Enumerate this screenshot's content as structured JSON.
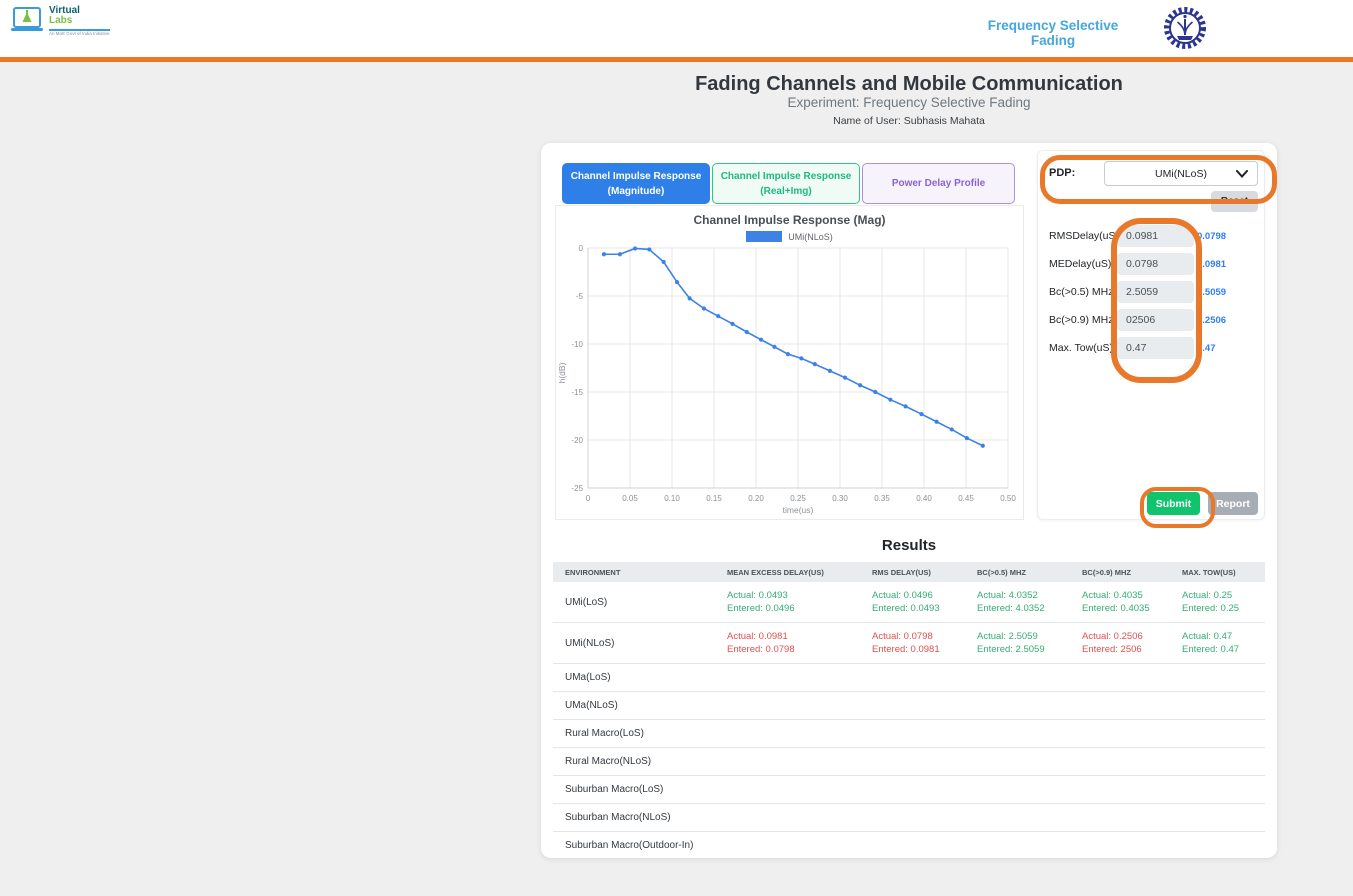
{
  "header": {
    "logo": {
      "line1": "Virtual",
      "line2": "Labs",
      "tagline": "An MoE Govt of India Initiative"
    },
    "experiment_title": "Frequency Selective Fading"
  },
  "page": {
    "title": "Fading Channels and Mobile Communication",
    "subtitle": "Experiment: Frequency Selective Fading",
    "user": "Name of User: Subhasis Mahata"
  },
  "tabs": [
    {
      "line1": "Channel Impulse Response",
      "line2": "(Magnitude)",
      "state": "active"
    },
    {
      "line1": "Channel Impulse Response",
      "line2": "(Real+Img)",
      "state": "inactive"
    },
    {
      "line1": "Power Delay Profile",
      "line2": "",
      "state": "inactive"
    }
  ],
  "controls": {
    "pdp_label": "PDP:",
    "pdp_value": "UMi(NLoS)",
    "reset_label": "Reset",
    "fields": [
      {
        "label": "RMSDelay(uS):",
        "value": "0.0981",
        "hint": "0.0798"
      },
      {
        "label": "MEDelay(uS):",
        "value": "0.0798",
        "hint": "0.0981"
      },
      {
        "label": "Bc(>0.5) MHz:",
        "value": "2.5059",
        "hint": "2.5059"
      },
      {
        "label": "Bc(>0.9) MHz:",
        "value": "02506",
        "hint": "0.2506"
      },
      {
        "label": "Max. Tow(uS):",
        "value": "0.47",
        "hint": "0.47"
      }
    ],
    "submit_label": "Submit",
    "report_label": "Report"
  },
  "chart_data": {
    "type": "line",
    "title": "Channel Impulse Response (Mag)",
    "legend": [
      "UMi(NLoS)"
    ],
    "series_color": "#3d82e4",
    "xlabel": "time(us)",
    "ylabel": "h(dB)",
    "xlim": [
      0,
      0.5
    ],
    "ylim": [
      -25,
      0
    ],
    "grid": true,
    "legend_position": "top",
    "x_ticks": [
      "0",
      "0.05",
      "0.10",
      "0.15",
      "0.20",
      "0.25",
      "0.30",
      "0.35",
      "0.40",
      "0.45",
      "0.50"
    ],
    "y_ticks": [
      "0",
      "-5",
      "-10",
      "-15",
      "-20",
      "-25"
    ],
    "points": [
      [
        0.019,
        -0.65
      ],
      [
        0.038,
        -0.65
      ],
      [
        0.056,
        -0.05
      ],
      [
        0.073,
        -0.15
      ],
      [
        0.09,
        -1.45
      ],
      [
        0.106,
        -3.55
      ],
      [
        0.121,
        -5.25
      ],
      [
        0.138,
        -6.3
      ],
      [
        0.155,
        -7.1
      ],
      [
        0.172,
        -7.9
      ],
      [
        0.189,
        -8.75
      ],
      [
        0.206,
        -9.55
      ],
      [
        0.222,
        -10.3
      ],
      [
        0.238,
        -11.05
      ],
      [
        0.254,
        -11.5
      ],
      [
        0.27,
        -12.1
      ],
      [
        0.288,
        -12.8
      ],
      [
        0.306,
        -13.5
      ],
      [
        0.324,
        -14.3
      ],
      [
        0.342,
        -15.0
      ],
      [
        0.36,
        -15.8
      ],
      [
        0.378,
        -16.5
      ],
      [
        0.397,
        -17.3
      ],
      [
        0.415,
        -18.1
      ],
      [
        0.433,
        -18.9
      ],
      [
        0.451,
        -19.8
      ],
      [
        0.47,
        -20.6
      ]
    ]
  },
  "results": {
    "title": "Results",
    "actual_prefix": "Actual:",
    "entered_prefix": "Entered:",
    "headers": [
      "Environment",
      "Mean Excess Delay(uS)",
      "RMS Delay(uS)",
      "Bc(>0.5) MHz",
      "Bc(>0.9) MHz",
      "Max. Tow(uS)"
    ],
    "rows": [
      {
        "environment": "UMi(LoS)",
        "cells": [
          {
            "actual": "0.0493",
            "entered": "0.0496",
            "status": "ok"
          },
          {
            "actual": "0.0496",
            "entered": "0.0493",
            "status": "ok"
          },
          {
            "actual": "4.0352",
            "entered": "4.0352",
            "status": "ok"
          },
          {
            "actual": "0.4035",
            "entered": "0.4035",
            "status": "ok"
          },
          {
            "actual": "0.25",
            "entered": "0.25",
            "status": "ok"
          }
        ]
      },
      {
        "environment": "UMi(NLoS)",
        "cells": [
          {
            "actual": "0.0981",
            "entered": "0.0798",
            "status": "bad"
          },
          {
            "actual": "0.0798",
            "entered": "0.0981",
            "status": "bad"
          },
          {
            "actual": "2.5059",
            "entered": "2.5059",
            "status": "ok"
          },
          {
            "actual": "0.2506",
            "entered": "2506",
            "status": "bad"
          },
          {
            "actual": "0.47",
            "entered": "0.47",
            "status": "ok"
          }
        ]
      },
      {
        "environment": "UMa(LoS)",
        "cells": null
      },
      {
        "environment": "UMa(NLoS)",
        "cells": null
      },
      {
        "environment": "Rural Macro(LoS)",
        "cells": null
      },
      {
        "environment": "Rural Macro(NLoS)",
        "cells": null
      },
      {
        "environment": "Suburban Macro(LoS)",
        "cells": null
      },
      {
        "environment": "Suburban Macro(NLoS)",
        "cells": null
      },
      {
        "environment": "Suburban Macro(Outdoor-In)",
        "cells": null
      }
    ]
  },
  "ui_colors": {
    "annotation": "#e8782a",
    "orange_bar": "#ee7623",
    "active_tab_blue": "#2e7fe8",
    "success_green": "#35ad74",
    "error_red": "#e04f4e",
    "hint_blue": "#2d7ef7",
    "submit_green": "#0fc46c"
  }
}
